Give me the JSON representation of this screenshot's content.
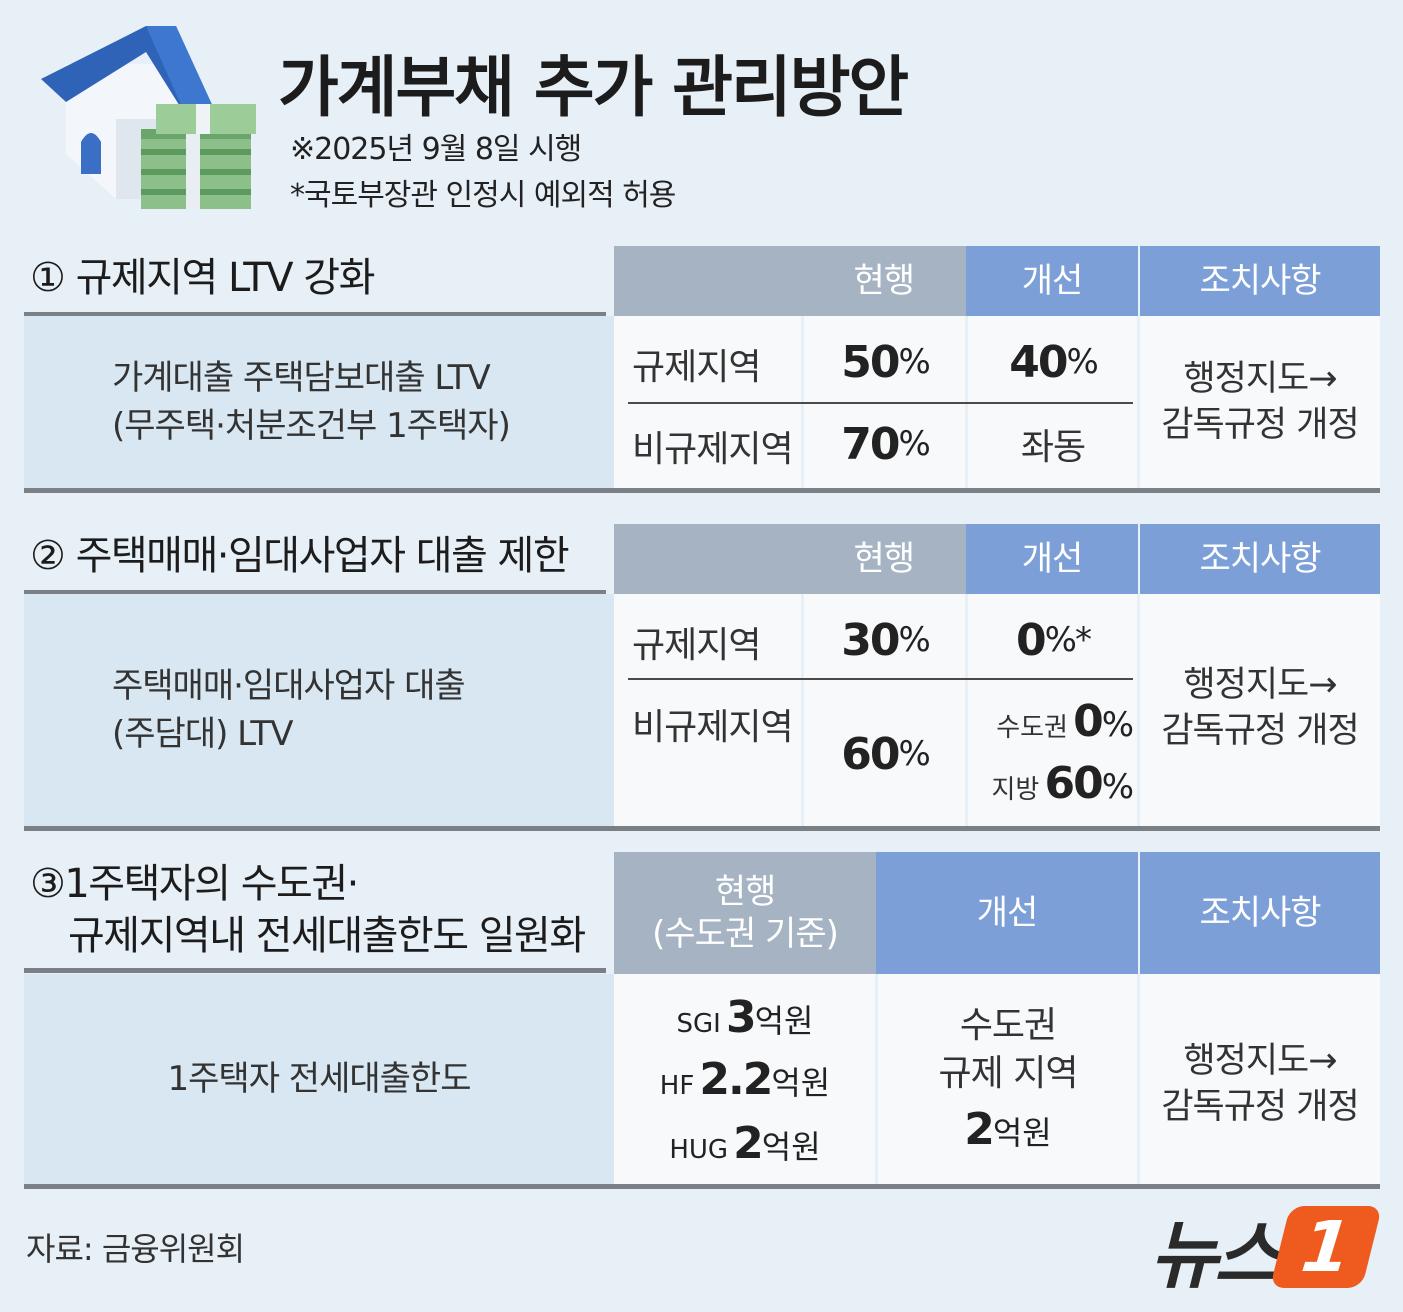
{
  "header": {
    "title": "가계부채 추가 관리방안",
    "note1": "※2025년 9월 8일 시행",
    "note2": "*국토부장관 인정시 예외적 허용"
  },
  "col_headers": {
    "current": "현행",
    "improved": "개선",
    "action": "조치사항"
  },
  "section1": {
    "title": "① 규제지역 LTV 강화",
    "left_line1": "가계대출 주택담보대출 LTV",
    "left_line2": "(무주택·처분조건부 1주택자)",
    "row1_label": "규제지역",
    "row1_current": "50",
    "row1_improved": "40",
    "row2_label": "비규제지역",
    "row2_current": "70",
    "row2_improved": "좌동",
    "action_line1": "행정지도→",
    "action_line2": "감독규정 개정"
  },
  "section2": {
    "title": "② 주택매매·임대사업자 대출 제한",
    "left_line1": "주택매매·임대사업자 대출",
    "left_line2": "(주담대) LTV",
    "row1_label": "규제지역",
    "row1_current": "30",
    "row1_improved": "0",
    "row1_mark": "*",
    "row2_label": "비규제지역",
    "row2_current": "60",
    "metro_label": "수도권",
    "metro_value": "0",
    "local_label": "지방",
    "local_value": "60",
    "action_line1": "행정지도→",
    "action_line2": "감독규정 개정"
  },
  "section3": {
    "title_line1": "③1주택자의 수도권·",
    "title_line2": "규제지역내 전세대출한도 일원화",
    "current_hdr1": "현행",
    "current_hdr2": "(수도권 기준)",
    "left_text": "1주택자 전세대출한도",
    "sgi_label": "SGI",
    "sgi_value": "3",
    "sgi_unit": "억원",
    "hf_label": "HF",
    "hf_value": "2.2",
    "hf_unit": "억원",
    "hug_label": "HUG",
    "hug_value": "2",
    "hug_unit": "억원",
    "improved_line1": "수도권",
    "improved_line2": "규제 지역",
    "improved_value": "2",
    "improved_unit": "억원",
    "action_line1": "행정지도→",
    "action_line2": "감독규정 개정"
  },
  "percent_sign": "%",
  "footer": {
    "source": "자료: 금융위원회",
    "logo_text": "뉴스",
    "logo_badge": "1"
  },
  "colors": {
    "gray_header": "#a5b3c3",
    "blue_header": "#7c9fd8",
    "left_panel": "#d8e7f1",
    "logo": "#ef5b1e"
  }
}
